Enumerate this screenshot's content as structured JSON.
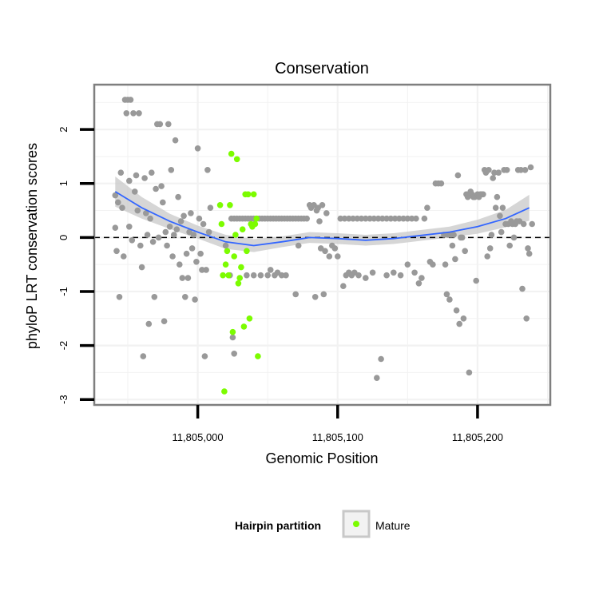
{
  "chart_data": {
    "type": "scatter",
    "title": "Conservation",
    "xlabel": "Genomic Position",
    "ylabel": "phyloP LRT conservation scores",
    "xlim": [
      11804926,
      11805252
    ],
    "ylim": [
      -3.1,
      2.83
    ],
    "x_ticks": [
      11805000,
      11805100,
      11805200
    ],
    "x_tick_labels": [
      "11,805,000",
      "11,805,100",
      "11,805,200"
    ],
    "y_ticks": [
      -3,
      -2,
      -1,
      0,
      1,
      2
    ],
    "y_tick_labels": [
      "-3",
      "-2",
      "-1",
      "0",
      "1",
      "2"
    ],
    "reference_line": {
      "y": 0,
      "style": "dashed"
    },
    "colors": {
      "other_points": "#999999",
      "mature_points": "#7cfc00",
      "smooth_line": "#3366ff",
      "confidence_band": "#c8c8c8",
      "grid": "#f2f2f2",
      "panel_border": "#7f7f7f"
    },
    "legend": {
      "title": "Hairpin partition",
      "entries": [
        {
          "label": "Mature",
          "color": "#7cfc00"
        }
      ],
      "position": "bottom"
    },
    "smooth": {
      "x": [
        11804941,
        11804960,
        11804980,
        11805000,
        11805020,
        11805040,
        11805060,
        11805080,
        11805100,
        11805120,
        11805140,
        11805160,
        11805180,
        11805200,
        11805220,
        11805237
      ],
      "y": [
        0.85,
        0.55,
        0.3,
        0.1,
        -0.08,
        -0.15,
        -0.08,
        0.0,
        -0.02,
        -0.05,
        -0.02,
        0.04,
        0.1,
        0.2,
        0.35,
        0.55
      ],
      "se": [
        0.28,
        0.2,
        0.14,
        0.12,
        0.13,
        0.12,
        0.1,
        0.1,
        0.1,
        0.1,
        0.1,
        0.1,
        0.1,
        0.13,
        0.16,
        0.24
      ]
    },
    "series": [
      {
        "name": "Other",
        "points": [
          [
            11804941,
            0.78
          ],
          [
            11804941,
            0.18
          ],
          [
            11804942,
            -0.25
          ],
          [
            11804943,
            0.65
          ],
          [
            11804944,
            -1.1
          ],
          [
            11804945,
            1.2
          ],
          [
            11804946,
            0.55
          ],
          [
            11804947,
            -0.35
          ],
          [
            11804948,
            2.55
          ],
          [
            11804949,
            2.3
          ],
          [
            11804950,
            2.55
          ],
          [
            11804951,
            1.05
          ],
          [
            11804951,
            0.2
          ],
          [
            11804952,
            2.55
          ],
          [
            11804953,
            -0.05
          ],
          [
            11804954,
            2.3
          ],
          [
            11804955,
            0.85
          ],
          [
            11804956,
            1.15
          ],
          [
            11804957,
            0.5
          ],
          [
            11804958,
            2.3
          ],
          [
            11804959,
            -0.15
          ],
          [
            11804960,
            -0.55
          ],
          [
            11804961,
            -2.2
          ],
          [
            11804962,
            1.1
          ],
          [
            11804963,
            0.45
          ],
          [
            11804964,
            0.05
          ],
          [
            11804965,
            -1.6
          ],
          [
            11804966,
            0.35
          ],
          [
            11804967,
            1.2
          ],
          [
            11804968,
            -0.08
          ],
          [
            11804969,
            -1.1
          ],
          [
            11804970,
            0.9
          ],
          [
            11804971,
            2.1
          ],
          [
            11804972,
            0.0
          ],
          [
            11804973,
            2.1
          ],
          [
            11804974,
            0.95
          ],
          [
            11804975,
            0.65
          ],
          [
            11804976,
            -1.55
          ],
          [
            11804977,
            0.1
          ],
          [
            11804978,
            -0.15
          ],
          [
            11804979,
            2.1
          ],
          [
            11804980,
            0.2
          ],
          [
            11804981,
            1.25
          ],
          [
            11804982,
            -0.35
          ],
          [
            11804983,
            0.05
          ],
          [
            11804984,
            1.8
          ],
          [
            11804985,
            0.15
          ],
          [
            11804986,
            0.75
          ],
          [
            11804987,
            -0.5
          ],
          [
            11804988,
            0.3
          ],
          [
            11804989,
            -0.75
          ],
          [
            11804990,
            0.4
          ],
          [
            11804991,
            -1.1
          ],
          [
            11804992,
            -0.3
          ],
          [
            11804993,
            -0.75
          ],
          [
            11804994,
            0.1
          ],
          [
            11804995,
            0.45
          ],
          [
            11804996,
            -0.2
          ],
          [
            11804997,
            0.05
          ],
          [
            11804998,
            -1.15
          ],
          [
            11804999,
            -0.45
          ],
          [
            11805000,
            1.65
          ],
          [
            11805001,
            0.35
          ],
          [
            11805002,
            -0.3
          ],
          [
            11805003,
            -0.6
          ],
          [
            11805004,
            0.25
          ],
          [
            11805005,
            -2.2
          ],
          [
            11805006,
            -0.6
          ],
          [
            11805007,
            1.25
          ],
          [
            11805008,
            0.1
          ],
          [
            11805009,
            0.55
          ],
          [
            11805020,
            -0.15
          ],
          [
            11805025,
            -1.85
          ],
          [
            11805026,
            -2.15
          ],
          [
            11805023,
            -0.7
          ],
          [
            11805024,
            0.35
          ],
          [
            11805026,
            0.35
          ],
          [
            11805028,
            0.35
          ],
          [
            11805030,
            0.35
          ],
          [
            11805032,
            0.35
          ],
          [
            11805034,
            0.35
          ],
          [
            11805036,
            0.35
          ],
          [
            11805038,
            0.35
          ],
          [
            11805040,
            0.35
          ],
          [
            11805042,
            0.35
          ],
          [
            11805044,
            0.35
          ],
          [
            11805046,
            0.35
          ],
          [
            11805048,
            0.35
          ],
          [
            11805050,
            0.35
          ],
          [
            11805052,
            0.35
          ],
          [
            11805054,
            0.35
          ],
          [
            11805056,
            0.35
          ],
          [
            11805058,
            0.35
          ],
          [
            11805060,
            0.35
          ],
          [
            11805062,
            0.35
          ],
          [
            11805064,
            0.35
          ],
          [
            11805066,
            0.35
          ],
          [
            11805068,
            0.35
          ],
          [
            11805070,
            0.35
          ],
          [
            11805072,
            0.35
          ],
          [
            11805074,
            0.35
          ],
          [
            11805076,
            0.35
          ],
          [
            11805078,
            0.35
          ],
          [
            11805035,
            -0.7
          ],
          [
            11805040,
            -0.7
          ],
          [
            11805045,
            -0.7
          ],
          [
            11805050,
            -0.7
          ],
          [
            11805055,
            -0.7
          ],
          [
            11805060,
            -0.7
          ],
          [
            11805052,
            -0.6
          ],
          [
            11805057,
            -0.65
          ],
          [
            11805063,
            -0.7
          ],
          [
            11805070,
            -1.05
          ],
          [
            11805072,
            -0.15
          ],
          [
            11805080,
            0.6
          ],
          [
            11805081,
            0.55
          ],
          [
            11805083,
            0.6
          ],
          [
            11805084,
            -1.1
          ],
          [
            11805085,
            0.5
          ],
          [
            11805086,
            0.55
          ],
          [
            11805087,
            0.3
          ],
          [
            11805088,
            -0.2
          ],
          [
            11805089,
            0.6
          ],
          [
            11805090,
            -1.05
          ],
          [
            11805091,
            -0.25
          ],
          [
            11805092,
            0.45
          ],
          [
            11805094,
            -0.35
          ],
          [
            11805096,
            -0.15
          ],
          [
            11805098,
            -0.2
          ],
          [
            11805100,
            -0.35
          ],
          [
            11805102,
            0.35
          ],
          [
            11805104,
            -0.9
          ],
          [
            11805106,
            -0.7
          ],
          [
            11805108,
            -0.65
          ],
          [
            11805110,
            -0.7
          ],
          [
            11805112,
            -0.65
          ],
          [
            11805105,
            0.35
          ],
          [
            11805108,
            0.35
          ],
          [
            11805111,
            0.35
          ],
          [
            11805114,
            0.35
          ],
          [
            11805117,
            0.35
          ],
          [
            11805120,
            0.35
          ],
          [
            11805123,
            0.35
          ],
          [
            11805126,
            0.35
          ],
          [
            11805129,
            0.35
          ],
          [
            11805132,
            0.35
          ],
          [
            11805135,
            0.35
          ],
          [
            11805138,
            0.35
          ],
          [
            11805141,
            0.35
          ],
          [
            11805144,
            0.35
          ],
          [
            11805147,
            0.35
          ],
          [
            11805150,
            0.35
          ],
          [
            11805153,
            0.35
          ],
          [
            11805156,
            0.35
          ],
          [
            11805115,
            -0.7
          ],
          [
            11805120,
            -0.75
          ],
          [
            11805125,
            -0.65
          ],
          [
            11805128,
            -2.6
          ],
          [
            11805131,
            -2.25
          ],
          [
            11805135,
            -0.7
          ],
          [
            11805140,
            -0.65
          ],
          [
            11805145,
            -0.7
          ],
          [
            11805150,
            -0.5
          ],
          [
            11805155,
            -0.65
          ],
          [
            11805160,
            -0.75
          ],
          [
            11805158,
            -0.85
          ],
          [
            11805162,
            0.35
          ],
          [
            11805164,
            0.55
          ],
          [
            11805166,
            -0.45
          ],
          [
            11805168,
            -0.5
          ],
          [
            11805170,
            1.0
          ],
          [
            11805172,
            1.0
          ],
          [
            11805174,
            1.0
          ],
          [
            11805176,
            0.05
          ],
          [
            11805177,
            -0.5
          ],
          [
            11805178,
            -1.05
          ],
          [
            11805179,
            0.05
          ],
          [
            11805180,
            -1.15
          ],
          [
            11805181,
            0.05
          ],
          [
            11805182,
            -0.15
          ],
          [
            11805183,
            0.05
          ],
          [
            11805184,
            -0.4
          ],
          [
            11805185,
            -1.35
          ],
          [
            11805186,
            1.15
          ],
          [
            11805187,
            -1.6
          ],
          [
            11805188,
            0.0
          ],
          [
            11805189,
            0.0
          ],
          [
            11805190,
            -1.5
          ],
          [
            11805191,
            -0.25
          ],
          [
            11805192,
            0.8
          ],
          [
            11805193,
            0.75
          ],
          [
            11805194,
            -2.5
          ],
          [
            11805195,
            0.85
          ],
          [
            11805196,
            0.8
          ],
          [
            11805197,
            0.75
          ],
          [
            11805198,
            0.75
          ],
          [
            11805199,
            -0.8
          ],
          [
            11805200,
            0.8
          ],
          [
            11805201,
            0.75
          ],
          [
            11805202,
            0.8
          ],
          [
            11805203,
            0.8
          ],
          [
            11805204,
            0.8
          ],
          [
            11805205,
            1.25
          ],
          [
            11805206,
            1.2
          ],
          [
            11805207,
            -0.35
          ],
          [
            11805208,
            1.25
          ],
          [
            11805209,
            -0.2
          ],
          [
            11805210,
            0.05
          ],
          [
            11805211,
            1.1
          ],
          [
            11805212,
            1.2
          ],
          [
            11805213,
            0.55
          ],
          [
            11805214,
            0.75
          ],
          [
            11805215,
            1.2
          ],
          [
            11805216,
            0.4
          ],
          [
            11805217,
            0.1
          ],
          [
            11805218,
            0.55
          ],
          [
            11805219,
            1.25
          ],
          [
            11805220,
            0.25
          ],
          [
            11805221,
            1.25
          ],
          [
            11805222,
            0.25
          ],
          [
            11805223,
            -0.15
          ],
          [
            11805224,
            0.3
          ],
          [
            11805225,
            0.25
          ],
          [
            11805226,
            0.0
          ],
          [
            11805227,
            0.25
          ],
          [
            11805228,
            0.3
          ],
          [
            11805229,
            1.25
          ],
          [
            11805230,
            0.3
          ],
          [
            11805231,
            1.25
          ],
          [
            11805232,
            -0.95
          ],
          [
            11805233,
            0.25
          ],
          [
            11805234,
            1.25
          ],
          [
            11805235,
            -1.5
          ],
          [
            11805236,
            -0.2
          ],
          [
            11805237,
            -0.3
          ],
          [
            11805238,
            1.3
          ],
          [
            11805239,
            0.25
          ]
        ]
      },
      {
        "name": "Mature",
        "points": [
          [
            11805016,
            0.6
          ],
          [
            11805017,
            0.25
          ],
          [
            11805018,
            -0.7
          ],
          [
            11805019,
            -2.85
          ],
          [
            11805020,
            -0.5
          ],
          [
            11805021,
            -0.25
          ],
          [
            11805022,
            -0.7
          ],
          [
            11805023,
            0.6
          ],
          [
            11805024,
            1.55
          ],
          [
            11805025,
            -1.75
          ],
          [
            11805026,
            -0.35
          ],
          [
            11805027,
            0.05
          ],
          [
            11805028,
            1.45
          ],
          [
            11805029,
            -0.85
          ],
          [
            11805030,
            -0.75
          ],
          [
            11805031,
            -0.55
          ],
          [
            11805032,
            0.15
          ],
          [
            11805033,
            -1.65
          ],
          [
            11805034,
            0.8
          ],
          [
            11805035,
            -0.25
          ],
          [
            11805036,
            0.8
          ],
          [
            11805037,
            -1.5
          ],
          [
            11805038,
            0.25
          ],
          [
            11805039,
            0.2
          ],
          [
            11805040,
            0.8
          ],
          [
            11805041,
            0.25
          ],
          [
            11805042,
            0.35
          ],
          [
            11805043,
            -2.2
          ]
        ]
      }
    ]
  }
}
